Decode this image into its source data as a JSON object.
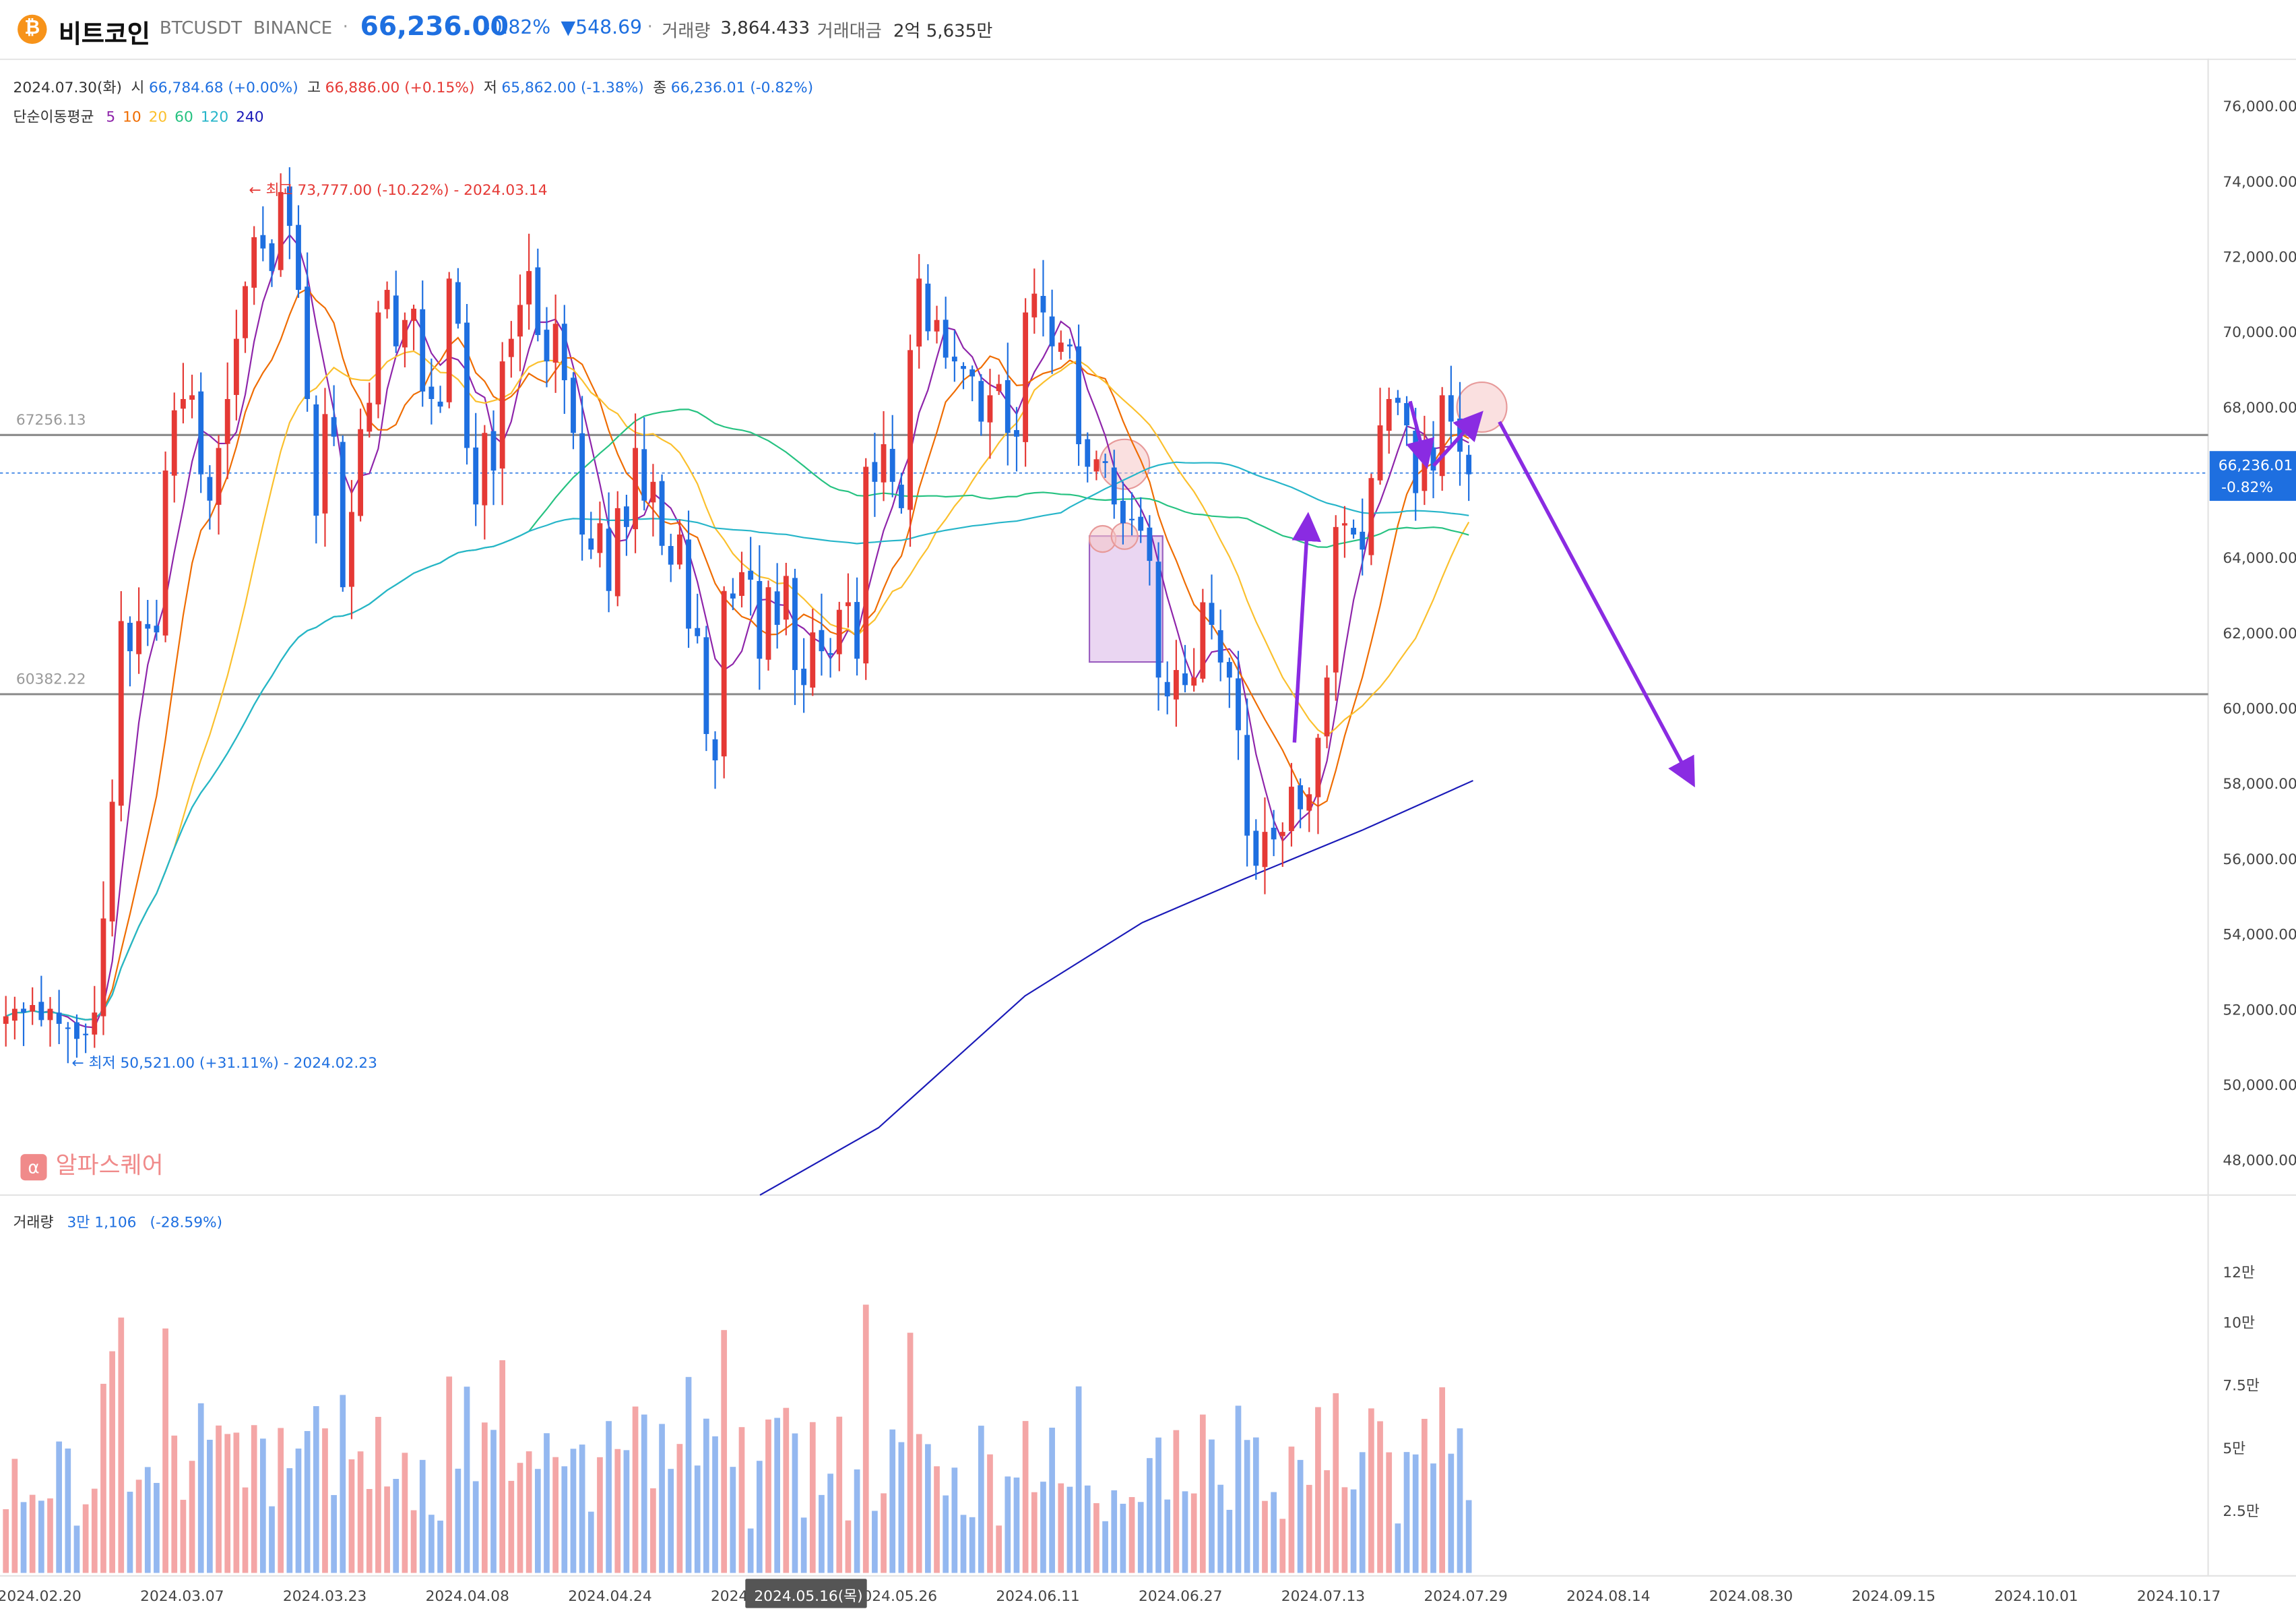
{
  "header": {
    "coin_icon": "₿",
    "name": "비트코인",
    "symbol": "BTCUSDT",
    "exchange": "BINANCE",
    "price": "66,236.00",
    "change_pct": "-0.82%",
    "change_abs": "▼548.69",
    "volume_label": "거래량",
    "volume_value": "3,864.433",
    "amount_label": "거래대금",
    "amount_value": "2억 5,635만"
  },
  "ohlc": {
    "date": "2024.07.30(화)",
    "open_label": "시",
    "open_value": "66,784.68 (+0.00%)",
    "high_label": "고",
    "high_value": "66,886.00 (+0.15%)",
    "low_label": "저",
    "low_value": "65,862.00 (-1.38%)",
    "close_label": "종",
    "close_value": "66,236.01 (-0.82%)"
  },
  "ma_legend": {
    "label": "단순이동평균",
    "periods": [
      "5",
      "10",
      "20",
      "60",
      "120",
      "240"
    ],
    "colors": [
      "#8e24aa",
      "#ef6c00",
      "#fbc02d",
      "#26c281",
      "#26b5c9",
      "#1a1ab8"
    ]
  },
  "volume_legend": {
    "label": "거래량",
    "value": "3만 1,106",
    "pct": "(-28.59%)"
  },
  "watermark": {
    "icon": "α",
    "text": "알파스퀘어"
  },
  "annotations": {
    "high_label": "← 최고 73,777.00 (-10.22%) - 2024.03.14",
    "low_label": "← 최저 50,521.00 (+31.11%) - 2024.02.23",
    "hline_top": "67256.13",
    "hline_bottom": "60382.22",
    "price_tag": "66,236.01",
    "price_tag_pct": "-0.82%",
    "crosshair_date": "2024.05.16(목)"
  },
  "colors": {
    "up": "#e53935",
    "down": "#1e6fe0",
    "up_vol": "#f4a6a6",
    "down_vol": "#94b8f0",
    "arrow": "#8a2be2"
  },
  "chart_data": {
    "type": "candlestick",
    "price_axis": {
      "min": 47000,
      "max": 77000,
      "ticks": [
        "48,000.00",
        "50,000.00",
        "52,000.00",
        "54,000.00",
        "56,000.00",
        "58,000.00",
        "60,000.00",
        "62,000.00",
        "64,000.00",
        "66,000.00",
        "68,000.00",
        "70,000.00",
        "72,000.00",
        "74,000.00",
        "76,000.00"
      ]
    },
    "volume_axis": {
      "ticks": [
        "2.5만",
        "5만",
        "7.5만",
        "10만",
        "12만"
      ]
    },
    "x_axis": [
      "2024.02.20",
      "2024.03.07",
      "2024.03.23",
      "2024.04.08",
      "2024.04.24",
      "2024.05.10",
      "2024.05.26",
      "2024.06.11",
      "2024.06.27",
      "2024.07.13",
      "2024.07.29",
      "2024.08.14",
      "2024.08.30",
      "2024.09.15",
      "2024.10.01",
      "2024.10.17"
    ],
    "series_close": [
      51800,
      52000,
      51900,
      52100,
      51700,
      52000,
      51600,
      51500,
      51200,
      51300,
      51900,
      54400,
      57500,
      62300,
      61500,
      62300,
      62100,
      62000,
      66300,
      67900,
      68200,
      68300,
      66200,
      65500,
      66900,
      68200,
      69800,
      71200,
      72500,
      72200,
      71600,
      73700,
      72800,
      71100,
      68200,
      65100,
      67800,
      67200,
      63200,
      65200,
      67400,
      68100,
      70500,
      71100,
      69600,
      70300,
      70600,
      68400,
      68200,
      68000,
      71400,
      70200,
      66900,
      65400,
      67300,
      66300,
      69200,
      69800,
      70700,
      71600,
      69900,
      69200,
      70200,
      68700,
      67300,
      64600,
      64200,
      64900,
      63100,
      65300,
      64800,
      66900,
      65500,
      66000,
      64300,
      63800,
      64600,
      62100,
      61900,
      59300,
      58600,
      63100,
      62900,
      63600,
      63400,
      61300,
      63200,
      62200,
      63500,
      61000,
      60600,
      62000,
      61500,
      61400,
      62600,
      62800,
      61300,
      66400,
      66000,
      67000,
      66000,
      65300,
      69500,
      71400,
      70000,
      70300,
      69300,
      69200,
      69000,
      68800,
      67600,
      68300,
      68600,
      67300,
      67200,
      70500,
      71000,
      70500,
      69600,
      69700,
      69600,
      67000,
      66400,
      66600,
      66500,
      65400,
      64900,
      65000,
      64700,
      63900,
      60800,
      60300,
      61000,
      60600,
      60800,
      62800,
      62200,
      61200,
      60800,
      59400,
      56600,
      55800,
      56700,
      56500,
      56700,
      57900,
      57300,
      57700,
      59200,
      60800,
      64800,
      64900,
      64600,
      64200,
      66100,
      67500,
      68200,
      68100,
      67500,
      65700,
      66800,
      66300,
      68300,
      67600,
      66800,
      66200
    ]
  }
}
